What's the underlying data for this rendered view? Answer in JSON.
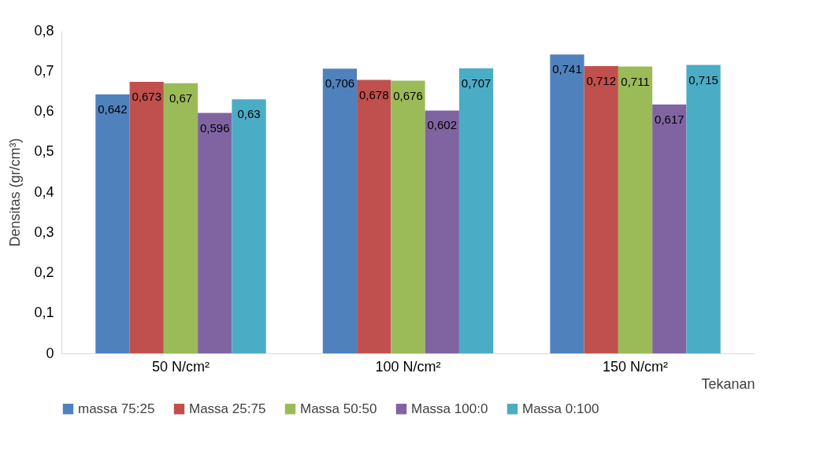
{
  "chart_data": {
    "type": "bar",
    "ylabel": "Densitas (gr/cm³)",
    "xlabel": "Tekanan",
    "categories": [
      "50 N/cm²",
      "100 N/cm²",
      "150 N/cm²"
    ],
    "series": [
      {
        "name": "massa 75:25",
        "color": "#4f81bd",
        "values": [
          0.642,
          0.706,
          0.741
        ],
        "value_labels": [
          "0,642",
          "0,706",
          "0,741"
        ]
      },
      {
        "name": "Massa 25:75",
        "color": "#c0504d",
        "values": [
          0.673,
          0.678,
          0.712
        ],
        "value_labels": [
          "0,673",
          "0,678",
          "0,712"
        ]
      },
      {
        "name": "Massa 50:50",
        "color": "#9bbb59",
        "values": [
          0.67,
          0.676,
          0.711
        ],
        "value_labels": [
          "0,67",
          "0,676",
          "0,711"
        ]
      },
      {
        "name": "Massa 100:0",
        "color": "#8064a2",
        "values": [
          0.596,
          0.602,
          0.617
        ],
        "value_labels": [
          "0,596",
          "0,602",
          "0,617"
        ]
      },
      {
        "name": "Massa 0:100",
        "color": "#4bacc6",
        "values": [
          0.63,
          0.707,
          0.715
        ],
        "value_labels": [
          "0,63",
          "0,707",
          "0,715"
        ]
      }
    ],
    "ylim": [
      0,
      0.8
    ],
    "yticks": [
      0,
      {
        "value": 0.1,
        "label": "0,1"
      },
      {
        "value": 0.2,
        "label": "0,2"
      },
      {
        "value": 0.3,
        "label": "0,3"
      },
      {
        "value": 0.4,
        "label": "0,4"
      },
      {
        "value": 0.5,
        "label": "0,5"
      },
      {
        "value": 0.6,
        "label": "0,6"
      },
      {
        "value": 0.7,
        "label": "0,7"
      },
      {
        "value": 0.8,
        "label": "0,8"
      }
    ],
    "grid": false,
    "legend": "bottom"
  }
}
